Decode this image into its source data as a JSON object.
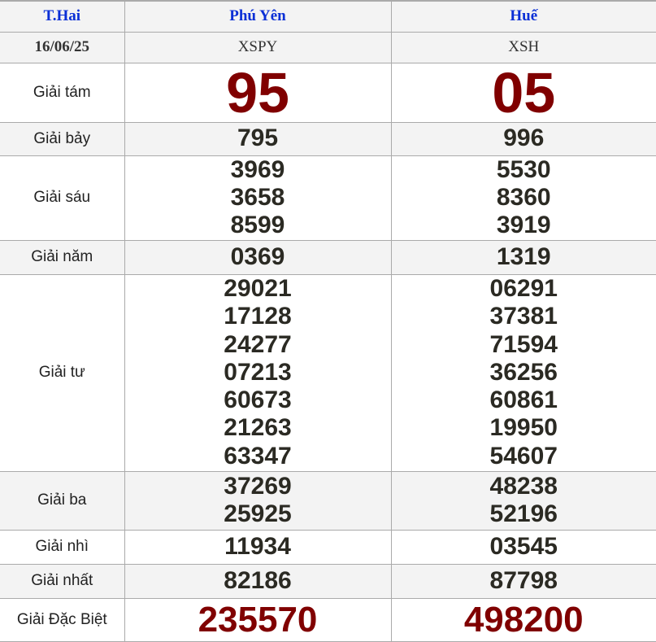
{
  "header": {
    "day": "T.Hai",
    "provinces": [
      "Phú Yên",
      "Huế"
    ]
  },
  "date_row": {
    "date": "16/06/25",
    "codes": [
      "XSPY",
      "XSH"
    ]
  },
  "prizes": [
    {
      "label": "Giải tám",
      "values": [
        [
          "95"
        ],
        [
          "05"
        ]
      ]
    },
    {
      "label": "Giải bảy",
      "values": [
        [
          "795"
        ],
        [
          "996"
        ]
      ]
    },
    {
      "label": "Giải sáu",
      "values": [
        [
          "3969",
          "3658",
          "8599"
        ],
        [
          "5530",
          "8360",
          "3919"
        ]
      ]
    },
    {
      "label": "Giải năm",
      "values": [
        [
          "0369"
        ],
        [
          "1319"
        ]
      ]
    },
    {
      "label": "Giải tư",
      "values": [
        [
          "29021",
          "17128",
          "24277",
          "07213",
          "60673",
          "21263",
          "63347"
        ],
        [
          "06291",
          "37381",
          "71594",
          "36256",
          "60861",
          "19950",
          "54607"
        ]
      ]
    },
    {
      "label": "Giải ba",
      "values": [
        [
          "37269",
          "25925"
        ],
        [
          "48238",
          "52196"
        ]
      ]
    },
    {
      "label": "Giải nhì",
      "values": [
        [
          "11934"
        ],
        [
          "03545"
        ]
      ]
    },
    {
      "label": "Giải nhất",
      "values": [
        [
          "82186"
        ],
        [
          "87798"
        ]
      ]
    },
    {
      "label": "Giải Đặc Biệt",
      "values": [
        [
          "235570"
        ],
        [
          "498200"
        ]
      ]
    }
  ],
  "colors": {
    "header_text": "#0a2fd6",
    "special_number": "#800000",
    "number": "#2b2a23",
    "alt_row": "#f3f3f3"
  }
}
